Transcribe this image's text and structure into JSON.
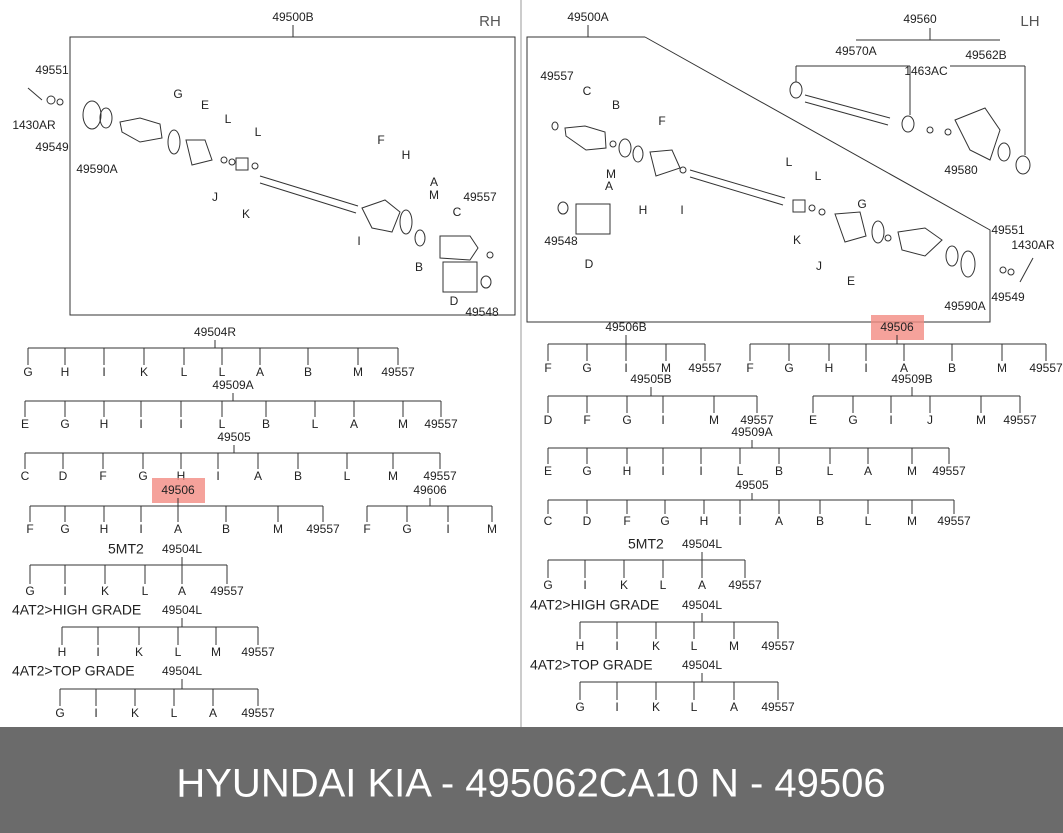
{
  "rh": {
    "title": "49500B",
    "side": "RH",
    "parts": [
      "49551",
      "1430AR",
      "49549",
      "49590A",
      "G",
      "E",
      "L",
      "L",
      "J",
      "K",
      "F",
      "H",
      "I",
      "A",
      "M",
      "49557",
      "C",
      "B",
      "D",
      "49548"
    ]
  },
  "lh": {
    "title": "49500A",
    "side": "LH",
    "parts": [
      "49560",
      "49570A",
      "1463AC",
      "49562B",
      "49557",
      "C",
      "B",
      "F",
      "M",
      "A",
      "H",
      "I",
      "L",
      "L",
      "G",
      "K",
      "J",
      "E",
      "49548",
      "D",
      "49580",
      "49551",
      "1430AR",
      "49549",
      "49590A"
    ]
  },
  "trees": [
    {
      "label": "49504R",
      "children": [
        "G",
        "H",
        "I",
        "K",
        "L",
        "L",
        "A",
        "B",
        "M",
        "49557"
      ]
    },
    {
      "label": "49509A",
      "children": [
        "E",
        "G",
        "H",
        "I",
        "I",
        "L",
        "B",
        "L",
        "A",
        "M",
        "49557"
      ]
    },
    {
      "label": "49505",
      "children": [
        "C",
        "D",
        "F",
        "G",
        "H",
        "I",
        "A",
        "B",
        "L",
        "M",
        "49557"
      ]
    },
    {
      "label": "49506",
      "highlight": true,
      "children": [
        "F",
        "G",
        "H",
        "I",
        "A",
        "B",
        "M",
        "49557"
      ]
    },
    {
      "label": "49606",
      "children": [
        "F",
        "G",
        "I",
        "M"
      ]
    },
    {
      "label": "49504L",
      "note": "5MT2",
      "children": [
        "G",
        "I",
        "K",
        "L",
        "A",
        "49557"
      ]
    },
    {
      "label": "49504L",
      "note": "4AT2>HIGH GRADE",
      "children": [
        "H",
        "I",
        "K",
        "L",
        "M",
        "49557"
      ]
    },
    {
      "label": "49504L",
      "note": "4AT2>TOP GRADE",
      "children": [
        "G",
        "I",
        "K",
        "L",
        "A",
        "49557"
      ]
    },
    {
      "label": "49506B",
      "children": [
        "F",
        "G",
        "I",
        "M",
        "49557"
      ]
    },
    {
      "label": "49506",
      "highlight": true,
      "children": [
        "F",
        "G",
        "H",
        "I",
        "A",
        "B",
        "M",
        "49557"
      ]
    },
    {
      "label": "49505B",
      "children": [
        "D",
        "F",
        "G",
        "I",
        "M",
        "49557"
      ]
    },
    {
      "label": "49509B",
      "children": [
        "E",
        "G",
        "I",
        "J",
        "M",
        "49557"
      ]
    },
    {
      "label": "49509A",
      "children": [
        "E",
        "G",
        "H",
        "I",
        "I",
        "L",
        "B",
        "L",
        "A",
        "M",
        "49557"
      ]
    },
    {
      "label": "49505",
      "children": [
        "C",
        "D",
        "F",
        "G",
        "H",
        "I",
        "A",
        "B",
        "L",
        "M",
        "49557"
      ]
    },
    {
      "label": "49504L",
      "note": "5MT2",
      "children": [
        "G",
        "I",
        "K",
        "L",
        "A",
        "49557"
      ]
    },
    {
      "label": "49504L",
      "note": "4AT2>HIGH GRADE",
      "children": [
        "H",
        "I",
        "K",
        "L",
        "M",
        "49557"
      ]
    },
    {
      "label": "49504L",
      "note": "4AT2>TOP GRADE",
      "children": [
        "G",
        "I",
        "K",
        "L",
        "A",
        "49557"
      ]
    }
  ],
  "footer": "HYUNDAI  KIA - 495062CA10     N - 49506"
}
